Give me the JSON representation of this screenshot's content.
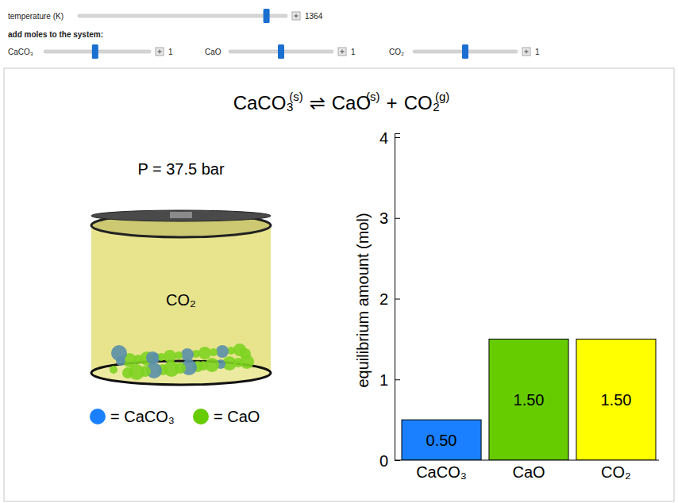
{
  "controls": {
    "temperature": {
      "label": "temperature (K)",
      "value": 1364
    },
    "add_heading": "add moles to the system:",
    "moles": [
      {
        "label": "CaCO₃",
        "value": 1
      },
      {
        "label": "CaO",
        "value": 1
      },
      {
        "label": "CO₂",
        "value": 1
      }
    ]
  },
  "equation": {
    "terms": [
      {
        "formula": "CaCO₃",
        "phase": "(s)"
      },
      {
        "formula": "CaO",
        "phase": "(s)"
      },
      {
        "formula": "CO₂",
        "phase": "(g)"
      }
    ],
    "operators": [
      "⇌",
      "+"
    ]
  },
  "pressure_text": "P = 37.5 bar",
  "cylinder_label": "CO₂",
  "particle_legend": [
    {
      "label": "= CaCO₃",
      "color": "#1a80ff"
    },
    {
      "label": "= CaO",
      "color": "#66cc00"
    }
  ],
  "chart_data": {
    "type": "bar",
    "categories": [
      "CaCO₃",
      "CaO",
      "CO₂"
    ],
    "values": [
      0.5,
      1.5,
      1.5
    ],
    "value_labels": [
      "0.50",
      "1.50",
      "1.50"
    ],
    "colors": [
      "#1a80ff",
      "#66cc00",
      "#ffff00"
    ],
    "ylabel": "equilibrium amount (mol)",
    "ylim": [
      0,
      4.05
    ],
    "yticks": [
      0,
      1,
      2,
      3,
      4
    ],
    "data_labels": true
  }
}
